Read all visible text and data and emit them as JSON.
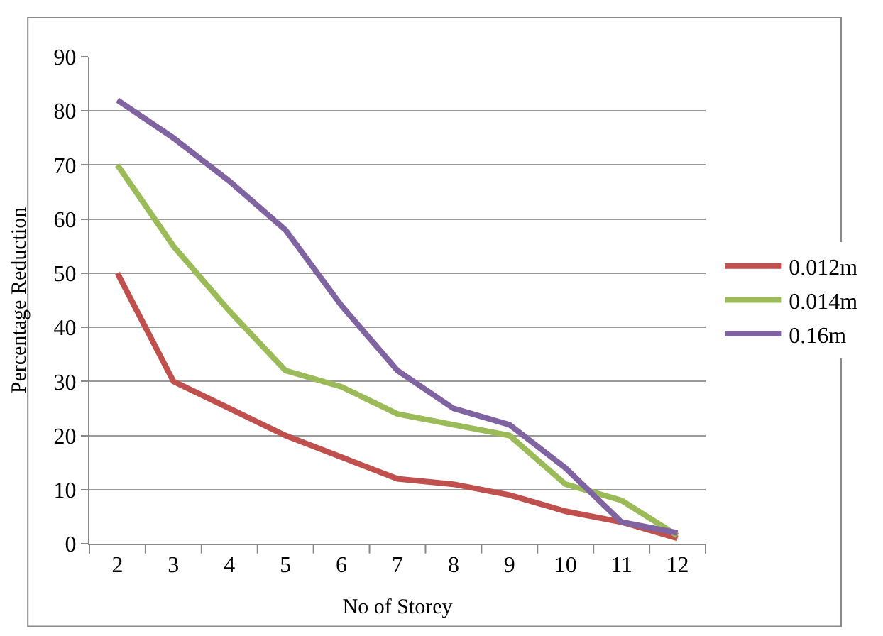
{
  "chart_data": {
    "type": "line",
    "xlabel": "No of Storey",
    "ylabel": "Percentage Reduction",
    "categories": [
      "2",
      "3",
      "4",
      "5",
      "6",
      "7",
      "8",
      "9",
      "10",
      "11",
      "12"
    ],
    "series": [
      {
        "name": "0.012m",
        "color": "#c0504d",
        "values": [
          50,
          30,
          25,
          20,
          16,
          12,
          11,
          9,
          6,
          4,
          1
        ]
      },
      {
        "name": "0.014m",
        "color": "#9bbb59",
        "values": [
          70,
          55,
          43,
          32,
          29,
          24,
          22,
          20,
          11,
          8,
          1.5
        ]
      },
      {
        "name": "0.16m",
        "color": "#8064a2",
        "values": [
          82,
          75,
          67,
          58,
          44,
          32,
          25,
          22,
          14,
          4,
          2
        ]
      }
    ],
    "ylim": [
      0,
      90
    ],
    "yticks": [
      0,
      10,
      20,
      30,
      40,
      50,
      60,
      70,
      80,
      90
    ],
    "grid": "y",
    "legend": "right",
    "marker": "none",
    "line_style": "solid"
  }
}
